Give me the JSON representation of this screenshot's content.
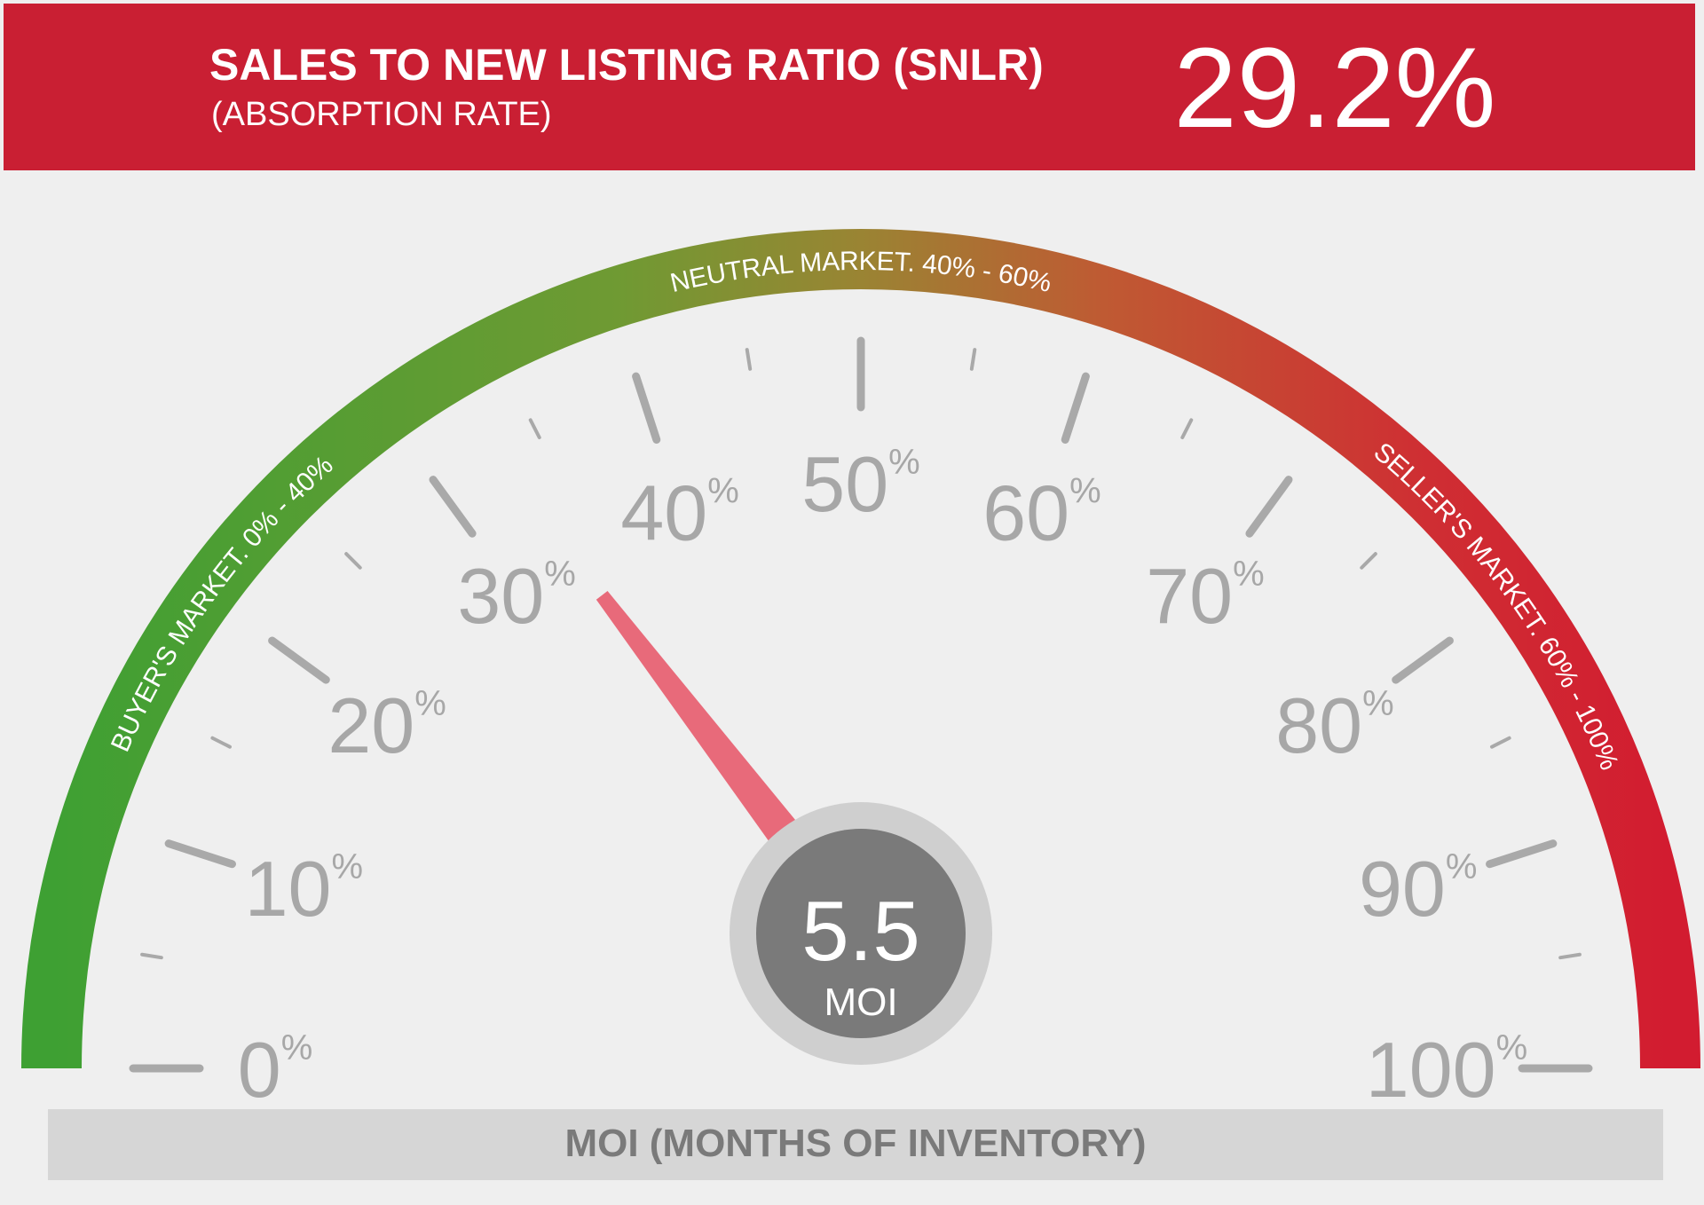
{
  "header": {
    "title": "SALES TO NEW LISTING RATIO (SNLR)",
    "subtitle": "(ABSORPTION RATE)",
    "value": "29.2%"
  },
  "chart_data": {
    "type": "gauge",
    "value": 29.2,
    "range": [
      0,
      100
    ],
    "ticks": [
      "0",
      "10",
      "20",
      "30",
      "40",
      "50",
      "60",
      "70",
      "80",
      "90",
      "100"
    ],
    "tick_unit": "%",
    "zones": [
      {
        "label": "BUYER'S MARKET. 0% - 40%",
        "from": 0,
        "to": 40,
        "color": "#3e9f35"
      },
      {
        "label": "NEUTRAL MARKET. 40% - 60%",
        "from": 40,
        "to": 60,
        "color": "#8d8a35"
      },
      {
        "label": "SELLER'S MARKET. 60% - 100%",
        "from": 60,
        "to": 100,
        "color": "#cf1f31"
      }
    ],
    "center": {
      "value": "5.5",
      "unit": "MOI"
    }
  },
  "colors": {
    "header_bg": "#c91f33",
    "needle": "#e86a7a",
    "hub": "#7a7a7a",
    "hub_ring": "#cfcfcf",
    "tick": "#a9a9a9"
  },
  "footer": {
    "label": "MOI (MONTHS OF INVENTORY)"
  }
}
